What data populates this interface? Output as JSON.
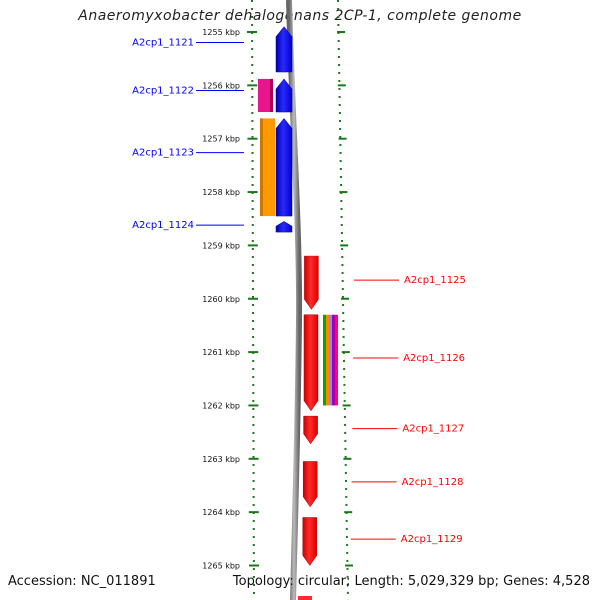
{
  "title": "Anaeromyxobacter dehalogenans 2CP-1, complete genome",
  "footer": {
    "accession": "Accession: NC_011891",
    "topology": "Topology: circular; Length: 5,029,329 bp; Genes: 4,528"
  },
  "colors": {
    "forward": "#0000ff",
    "reverse": "#ff0000",
    "backbone": "#888888",
    "ruler": "#1a7a1a"
  },
  "axis": {
    "unit": "kbp",
    "start_kbp": 1255,
    "end_kbp": 1265,
    "ticks": [
      "1255 kbp",
      "1256 kbp",
      "1257 kbp",
      "1258 kbp",
      "1259 kbp",
      "1260 kbp",
      "1261 kbp",
      "1262 kbp",
      "1263 kbp",
      "1264 kbp",
      "1265 kbp"
    ]
  },
  "genes": [
    {
      "label": "A2cp1_1121",
      "strand": "+",
      "start_kbp": 1254.9,
      "end_kbp": 1255.75
    },
    {
      "label": "A2cp1_1122",
      "strand": "+",
      "start_kbp": 1255.88,
      "end_kbp": 1256.5
    },
    {
      "label": "A2cp1_1123",
      "strand": "+",
      "start_kbp": 1256.62,
      "end_kbp": 1258.45
    },
    {
      "label": "A2cp1_1124",
      "strand": "+",
      "start_kbp": 1258.55,
      "end_kbp": 1258.75
    },
    {
      "label": "A2cp1_1125",
      "strand": "-",
      "start_kbp": 1259.2,
      "end_kbp": 1260.2
    },
    {
      "label": "A2cp1_1126",
      "strand": "-",
      "start_kbp": 1260.3,
      "end_kbp": 1262.1
    },
    {
      "label": "A2cp1_1127",
      "strand": "-",
      "start_kbp": 1262.2,
      "end_kbp": 1262.72
    },
    {
      "label": "A2cp1_1128",
      "strand": "-",
      "start_kbp": 1263.05,
      "end_kbp": 1263.9
    },
    {
      "label": "A2cp1_1129",
      "strand": "-",
      "start_kbp": 1264.1,
      "end_kbp": 1265.0
    }
  ],
  "features": [
    {
      "name": "magenta-feature",
      "color": "#e8158c",
      "start_kbp": 1255.88,
      "end_kbp": 1256.5
    },
    {
      "name": "orange-feature",
      "color": "#ff9900",
      "start_kbp": 1256.62,
      "end_kbp": 1258.45
    },
    {
      "name": "multicolor-feature",
      "colors": [
        "#00aa00",
        "#ff8800",
        "#8888ff",
        "#aa00aa",
        "#ff0088"
      ],
      "start_kbp": 1260.3,
      "end_kbp": 1262.0
    }
  ]
}
